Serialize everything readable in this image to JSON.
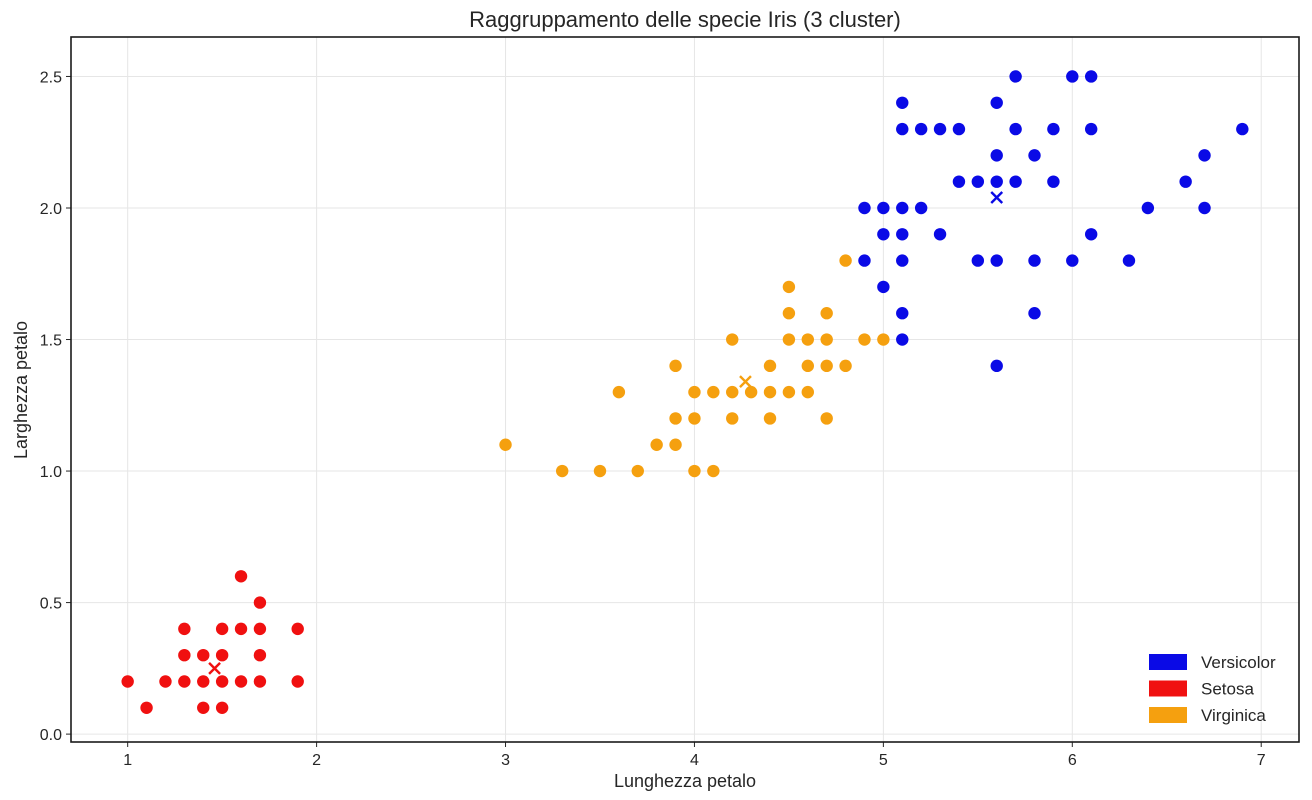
{
  "chart_data": {
    "type": "scatter",
    "title": "Raggruppamento delle specie Iris (3 cluster)",
    "xlabel": "Lunghezza petalo",
    "ylabel": "Larghezza petalo",
    "xlim": [
      0.7,
      7.2
    ],
    "ylim": [
      -0.03,
      2.65
    ],
    "xticks": [
      1,
      2,
      3,
      4,
      5,
      6,
      7
    ],
    "xtick_labels": [
      "1",
      "2",
      "3",
      "4",
      "5",
      "6",
      "7"
    ],
    "yticks": [
      0.0,
      0.5,
      1.0,
      1.5,
      2.0,
      2.5
    ],
    "ytick_labels": [
      "0.0",
      "0.5",
      "1.0",
      "1.5",
      "2.0",
      "2.5"
    ],
    "grid": true,
    "legend_position": "bottom-right",
    "series": [
      {
        "name": "Versicolor",
        "color": "#0a0ae6",
        "centroid": [
          5.6,
          2.04
        ],
        "points": [
          [
            5.1,
            2.4
          ],
          [
            5.6,
            2.4
          ],
          [
            5.7,
            2.5
          ],
          [
            6.0,
            2.5
          ],
          [
            6.1,
            2.5
          ],
          [
            5.1,
            2.3
          ],
          [
            5.2,
            2.3
          ],
          [
            5.3,
            2.3
          ],
          [
            5.4,
            2.3
          ],
          [
            5.7,
            2.3
          ],
          [
            5.9,
            2.3
          ],
          [
            6.1,
            2.3
          ],
          [
            6.9,
            2.3
          ],
          [
            5.6,
            2.2
          ],
          [
            5.8,
            2.2
          ],
          [
            6.7,
            2.2
          ],
          [
            5.4,
            2.1
          ],
          [
            5.5,
            2.1
          ],
          [
            5.6,
            2.1
          ],
          [
            5.7,
            2.1
          ],
          [
            5.9,
            2.1
          ],
          [
            6.6,
            2.1
          ],
          [
            4.9,
            2.0
          ],
          [
            5.0,
            2.0
          ],
          [
            5.1,
            2.0
          ],
          [
            5.2,
            2.0
          ],
          [
            6.4,
            2.0
          ],
          [
            6.7,
            2.0
          ],
          [
            5.0,
            1.9
          ],
          [
            5.1,
            1.9
          ],
          [
            5.3,
            1.9
          ],
          [
            6.1,
            1.9
          ],
          [
            4.9,
            1.8
          ],
          [
            5.1,
            1.8
          ],
          [
            5.5,
            1.8
          ],
          [
            5.6,
            1.8
          ],
          [
            5.8,
            1.8
          ],
          [
            6.0,
            1.8
          ],
          [
            6.3,
            1.8
          ],
          [
            5.0,
            1.7
          ],
          [
            5.1,
            1.6
          ],
          [
            5.8,
            1.6
          ],
          [
            5.1,
            1.5
          ],
          [
            5.6,
            1.4
          ]
        ]
      },
      {
        "name": "Setosa",
        "color": "#f01010",
        "centroid": [
          1.46,
          0.25
        ],
        "points": [
          [
            1.6,
            0.6
          ],
          [
            1.7,
            0.5
          ],
          [
            1.3,
            0.4
          ],
          [
            1.5,
            0.4
          ],
          [
            1.6,
            0.4
          ],
          [
            1.7,
            0.4
          ],
          [
            1.9,
            0.4
          ],
          [
            1.3,
            0.3
          ],
          [
            1.4,
            0.3
          ],
          [
            1.5,
            0.3
          ],
          [
            1.7,
            0.3
          ],
          [
            1.0,
            0.2
          ],
          [
            1.2,
            0.2
          ],
          [
            1.3,
            0.2
          ],
          [
            1.4,
            0.2
          ],
          [
            1.5,
            0.2
          ],
          [
            1.6,
            0.2
          ],
          [
            1.7,
            0.2
          ],
          [
            1.9,
            0.2
          ],
          [
            1.1,
            0.1
          ],
          [
            1.4,
            0.1
          ],
          [
            1.5,
            0.1
          ]
        ]
      },
      {
        "name": "Virginica",
        "color": "#f5a00f",
        "centroid": [
          4.27,
          1.34
        ],
        "points": [
          [
            4.8,
            1.8
          ],
          [
            4.5,
            1.7
          ],
          [
            4.5,
            1.6
          ],
          [
            4.7,
            1.6
          ],
          [
            4.2,
            1.5
          ],
          [
            4.5,
            1.5
          ],
          [
            4.6,
            1.5
          ],
          [
            4.7,
            1.5
          ],
          [
            4.9,
            1.5
          ],
          [
            5.0,
            1.5
          ],
          [
            3.9,
            1.4
          ],
          [
            4.4,
            1.4
          ],
          [
            4.6,
            1.4
          ],
          [
            4.7,
            1.4
          ],
          [
            4.8,
            1.4
          ],
          [
            3.6,
            1.3
          ],
          [
            4.0,
            1.3
          ],
          [
            4.1,
            1.3
          ],
          [
            4.2,
            1.3
          ],
          [
            4.3,
            1.3
          ],
          [
            4.4,
            1.3
          ],
          [
            4.5,
            1.3
          ],
          [
            4.6,
            1.3
          ],
          [
            3.9,
            1.2
          ],
          [
            4.0,
            1.2
          ],
          [
            4.2,
            1.2
          ],
          [
            4.4,
            1.2
          ],
          [
            4.7,
            1.2
          ],
          [
            3.0,
            1.1
          ],
          [
            3.8,
            1.1
          ],
          [
            3.9,
            1.1
          ],
          [
            3.3,
            1.0
          ],
          [
            3.5,
            1.0
          ],
          [
            3.7,
            1.0
          ],
          [
            4.0,
            1.0
          ],
          [
            4.1,
            1.0
          ]
        ]
      }
    ]
  }
}
